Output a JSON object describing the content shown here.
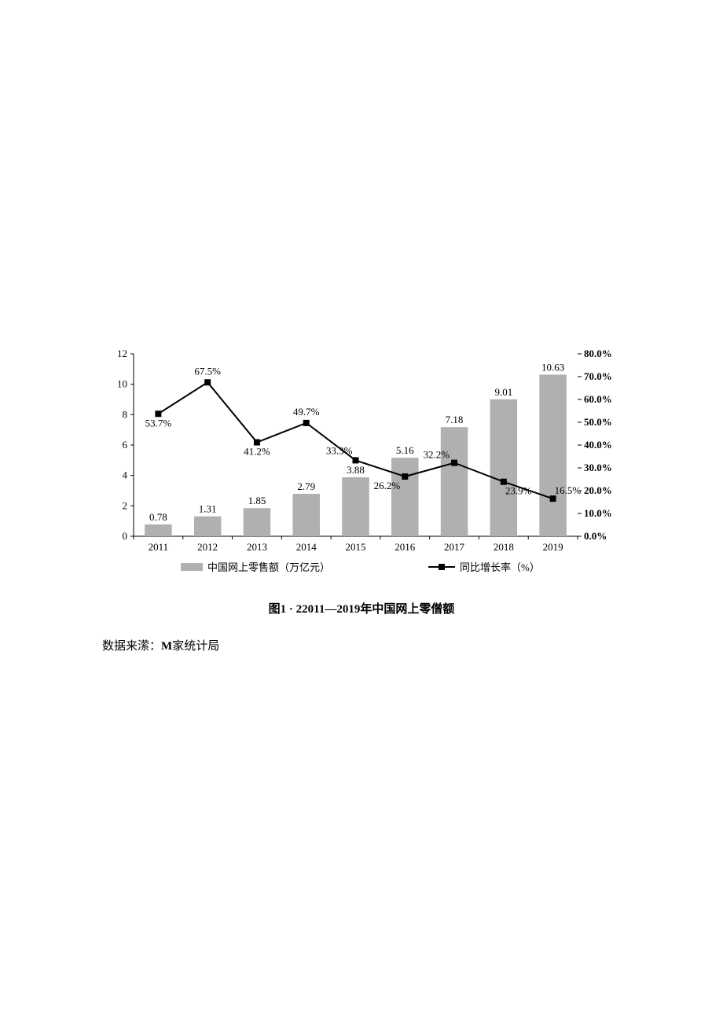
{
  "chart": {
    "type": "bar+line",
    "categories": [
      "2011",
      "2012",
      "2013",
      "2014",
      "2015",
      "2016",
      "2017",
      "2018",
      "2019"
    ],
    "bar_series": {
      "name": "中国网上零售额（万亿元）",
      "values": [
        0.78,
        1.31,
        1.85,
        2.79,
        3.88,
        5.16,
        7.18,
        9.01,
        10.63
      ],
      "color": "#b0b0b0"
    },
    "line_series": {
      "name": "同比增长率（%）",
      "values": [
        53.7,
        67.5,
        41.2,
        49.7,
        33.3,
        26.2,
        32.2,
        23.9,
        16.5
      ],
      "color": "#000000",
      "marker": "square",
      "marker_size": 8,
      "line_width": 2
    },
    "y_left": {
      "min": 0,
      "max": 12,
      "step": 2,
      "ticks": [
        "0",
        "2",
        "4",
        "6",
        "8",
        "10",
        "12"
      ]
    },
    "y_right": {
      "min": 0,
      "max": 80,
      "step": 10,
      "ticks": [
        "0.0%",
        "10.0%",
        "20.0%",
        "30.0%",
        "40.0%",
        "50.0%",
        "60.0%",
        "70.0%",
        "80.0%"
      ]
    },
    "bg": "#ffffff",
    "axis_color": "#000000",
    "tick_font_size": 13,
    "label_font_size": 13,
    "data_label_font_size": 13,
    "bar_width_ratio": 0.55
  },
  "caption": "图1 · 22011—2019年中国网上零僧额",
  "source_prefix": "数据来潆：",
  "source_bold": "M",
  "source_suffix": "家统计局"
}
